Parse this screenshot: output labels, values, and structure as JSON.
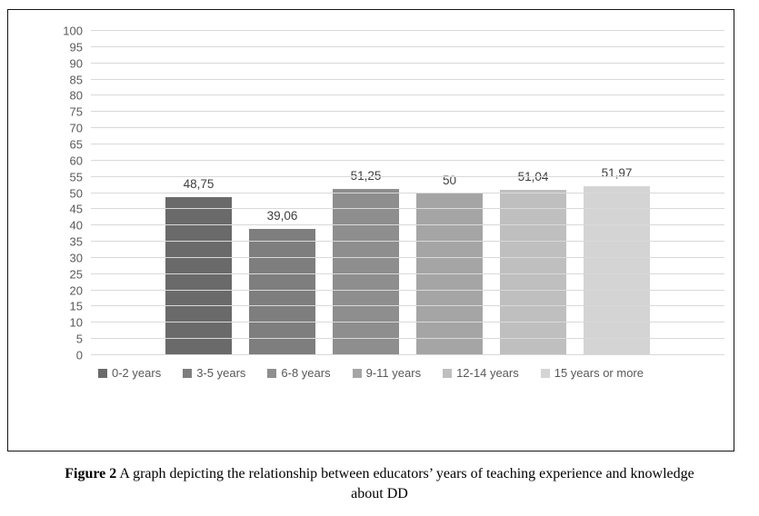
{
  "chart_data": {
    "type": "bar",
    "title": "",
    "xlabel": "",
    "ylabel": "",
    "categories": [
      "0-2 years",
      "3-5 years",
      "6-8 years",
      "9-11 years",
      "12-14 years",
      "15 years or more"
    ],
    "values": [
      48.75,
      39.06,
      51.25,
      50,
      51.04,
      51.97
    ],
    "value_labels": [
      "48,75",
      "39,06",
      "51,25",
      "50",
      "51,04",
      "51,97"
    ],
    "bar_colors": [
      "#6a6a6a",
      "#7e7e7e",
      "#8e8e8e",
      "#a5a5a5",
      "#bfbfbf",
      "#d4d4d4"
    ],
    "ylim": [
      0,
      100
    ],
    "ytick_step": 5,
    "grid": true,
    "gridline_color": "#d9d9d9",
    "axis_label_color": "#595959",
    "data_label_color": "#404040",
    "legend_position": "bottom",
    "legend_entries": [
      "0-2 years",
      "3-5 years",
      "6-8 years",
      "9-11 years",
      "12-14 years",
      "15 years or more"
    ]
  },
  "figure": {
    "caption": {
      "label": "Figure 2",
      "line1_rest": "A graph depicting the relationship between educators’ years of teaching experience and knowledge",
      "line2": "about DD"
    }
  }
}
